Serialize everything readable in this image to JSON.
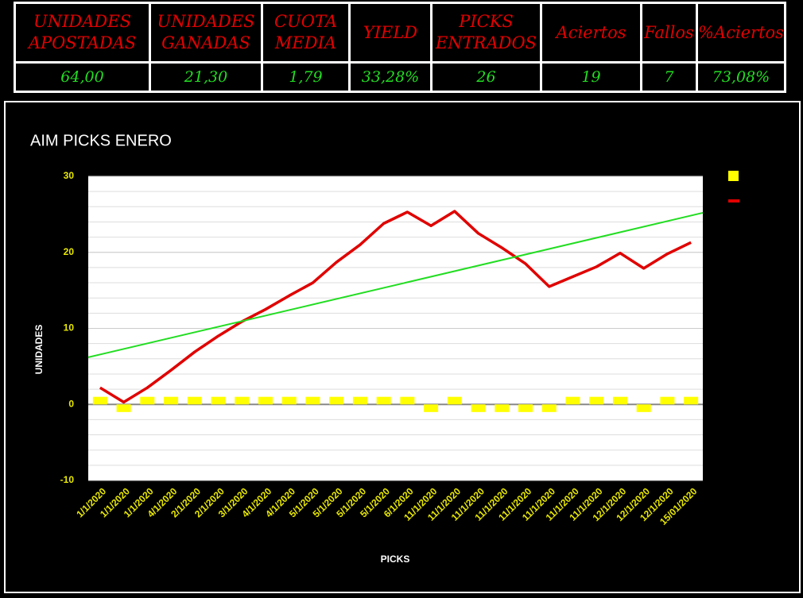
{
  "table": {
    "header": [
      "UNIDADES APOSTADAS",
      "UNIDADES GANADAS",
      "CUOTA MEDIA",
      "YIELD",
      "PICKS ENTRADOS",
      "Aciertos",
      "Fallos",
      "%Aciertos"
    ],
    "rows": [
      [
        "64,00",
        "21,30",
        "1,79",
        "33,28%",
        "26",
        "19",
        "7",
        "73,08%"
      ]
    ]
  },
  "chart_data": {
    "type": "combo",
    "title": "AIM PICKS ENERO",
    "y_label": "UNIDADES",
    "x_label": "PICKS",
    "categories": [
      "1/1/2020",
      "1/1/2020",
      "1/1/2020",
      "4/1/2020",
      "2/1/2020",
      "2/1/2020",
      "3/1/2020",
      "4/1/2020",
      "4/1/2020",
      "5/1/2020",
      "5/1/2020",
      "5/1/2020",
      "5/1/2020",
      "6/1/2020",
      "11/1/2020",
      "11/1/2020",
      "11/1/2020",
      "11/1/2020",
      "11/1/2020",
      "11/1/2020",
      "11/1/2020",
      "11/1/2020",
      "12/1/2020",
      "12/1/2020",
      "12/1/2020",
      "15/01/2020"
    ],
    "series": [
      {
        "kind": "bar",
        "color": "#ffff00",
        "values": [
          1,
          -1,
          1,
          1,
          1,
          1,
          1,
          1,
          1,
          1,
          1,
          1,
          1,
          1,
          -1,
          1,
          -1,
          -1,
          -1,
          -1,
          1,
          1,
          1,
          -1,
          1,
          1
        ]
      },
      {
        "kind": "line",
        "color": "#e00000",
        "values": [
          2.2,
          0.3,
          2.2,
          4.5,
          6.9,
          9.0,
          10.9,
          12.5,
          14.3,
          16.0,
          18.7,
          21.0,
          23.8,
          25.3,
          23.5,
          25.4,
          22.5,
          20.6,
          18.5,
          15.5,
          16.8,
          18.1,
          19.9,
          17.9,
          19.8,
          21.3
        ]
      }
    ],
    "trend": {
      "color": "#22dd22",
      "values": [
        6.2,
        25.2
      ]
    },
    "ylim": [
      -10,
      30
    ],
    "yticks": [
      -10,
      0,
      10,
      20,
      30
    ],
    "grid": true
  }
}
